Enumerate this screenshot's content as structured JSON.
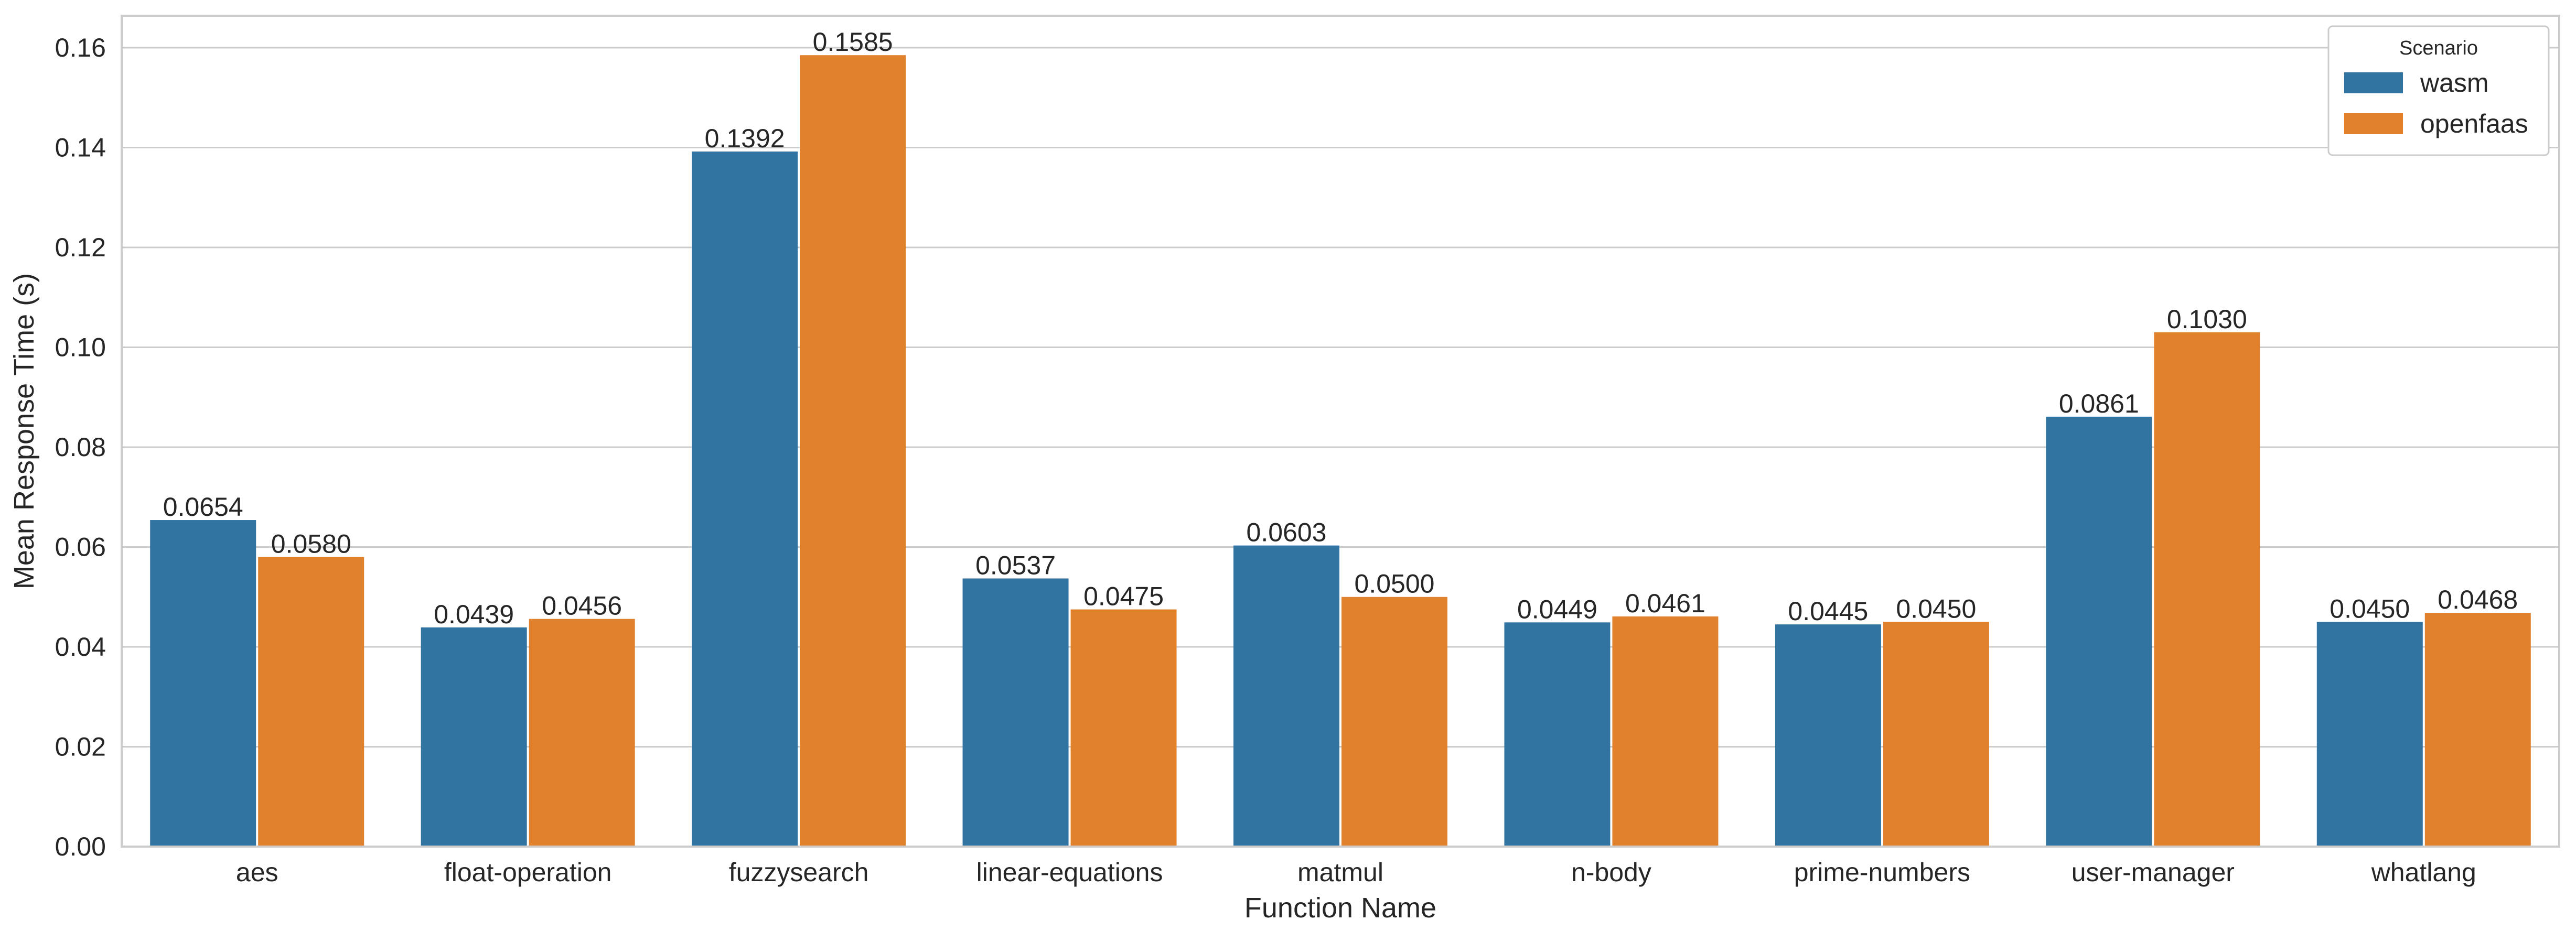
{
  "chart_data": {
    "type": "bar",
    "title": "",
    "xlabel": "Function Name",
    "ylabel": "Mean Response Time (s)",
    "categories": [
      "aes",
      "float-operation",
      "fuzzysearch",
      "linear-equations",
      "matmul",
      "n-body",
      "prime-numbers",
      "user-manager",
      "whatlang"
    ],
    "series": [
      {
        "name": "wasm",
        "color": "#3274a1",
        "values": [
          0.0654,
          0.0439,
          0.1392,
          0.0537,
          0.0603,
          0.0449,
          0.0445,
          0.0861,
          0.045
        ],
        "labels": [
          "0.0654",
          "0.0439",
          "0.1392",
          "0.0537",
          "0.0603",
          "0.0449",
          "0.0445",
          "0.0861",
          "0.0450"
        ]
      },
      {
        "name": "openfaas",
        "color": "#e1812c",
        "values": [
          0.058,
          0.0456,
          0.1585,
          0.0475,
          0.05,
          0.0461,
          0.045,
          0.103,
          0.0468
        ],
        "labels": [
          "0.0580",
          "0.0456",
          "0.1585",
          "0.0475",
          "0.0500",
          "0.0461",
          "0.0450",
          "0.1030",
          "0.0468"
        ]
      }
    ],
    "ylim": [
      0,
      0.1664
    ],
    "yticks": [
      "0.00",
      "0.02",
      "0.04",
      "0.06",
      "0.08",
      "0.10",
      "0.12",
      "0.14",
      "0.16"
    ],
    "grid": "horizontal",
    "legend": {
      "title": "Scenario",
      "position": "top-right"
    }
  }
}
